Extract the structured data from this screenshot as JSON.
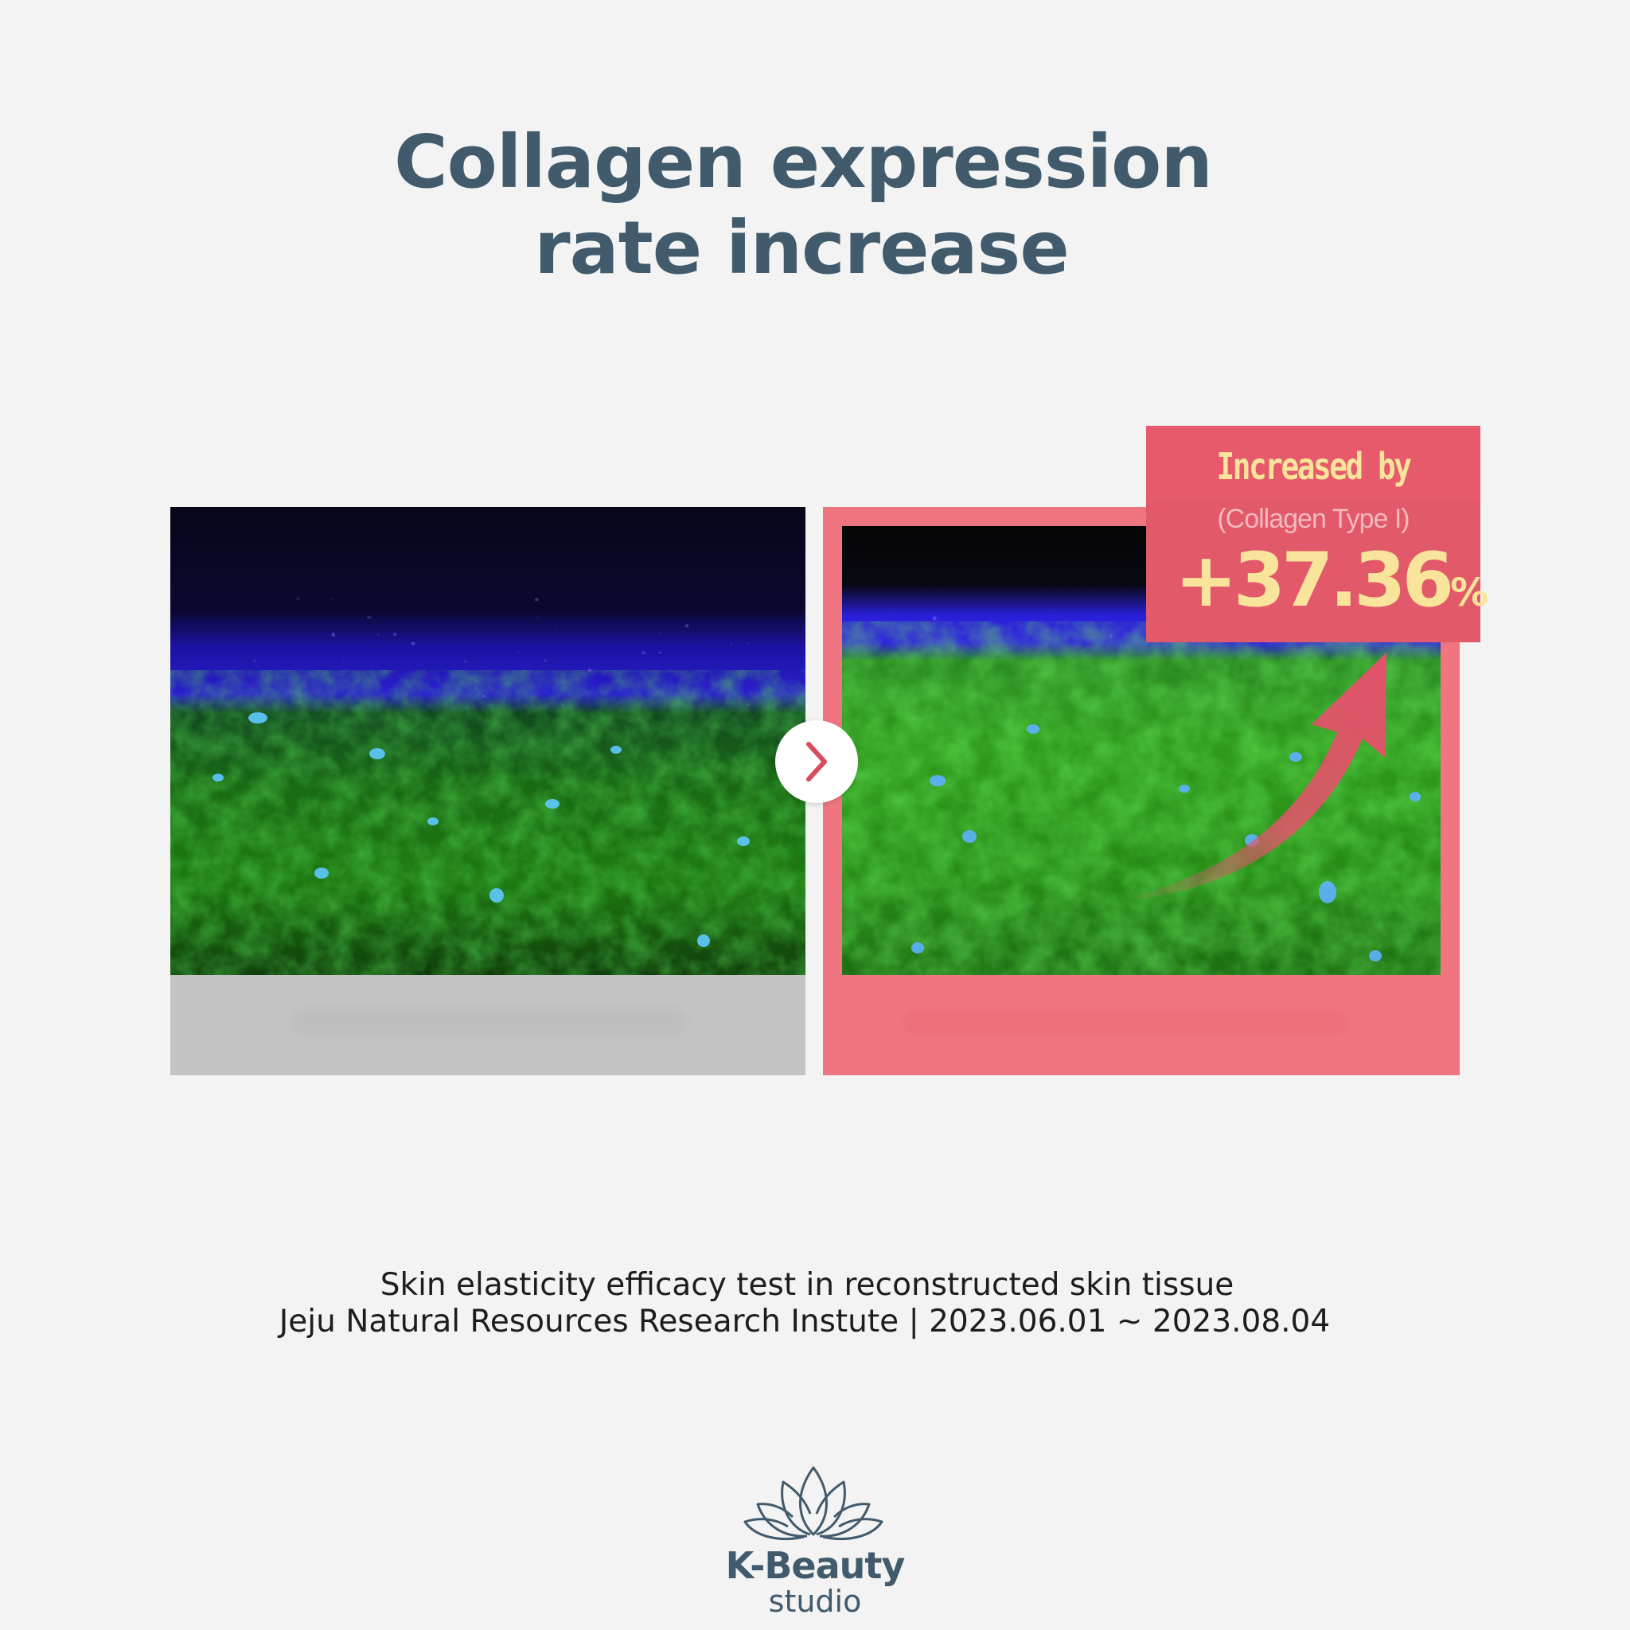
{
  "header": {
    "title_line1": "Collagen expression",
    "title_line2": "rate increase"
  },
  "comparison": {
    "before_panel_color": "#c4c4c4",
    "after_panel_color": "#ef7680",
    "next_icon": "chevron-right-icon"
  },
  "badge": {
    "heading": "Increased by",
    "subheading": "(Collagen Type I)",
    "value": "+37.36",
    "unit": "%",
    "accent_color": "#e2596a",
    "text_color": "#f8e49a"
  },
  "footnote": {
    "line1": "Skin elasticity efficacy test in reconstructed skin tissue",
    "line2": "Jeju Natural Resources Research Instute | 2023.06.01 ~ 2023.08.04"
  },
  "brand": {
    "icon": "lotus-icon",
    "name": "K-Beauty",
    "sub": "studio",
    "color": "#415b6c"
  }
}
